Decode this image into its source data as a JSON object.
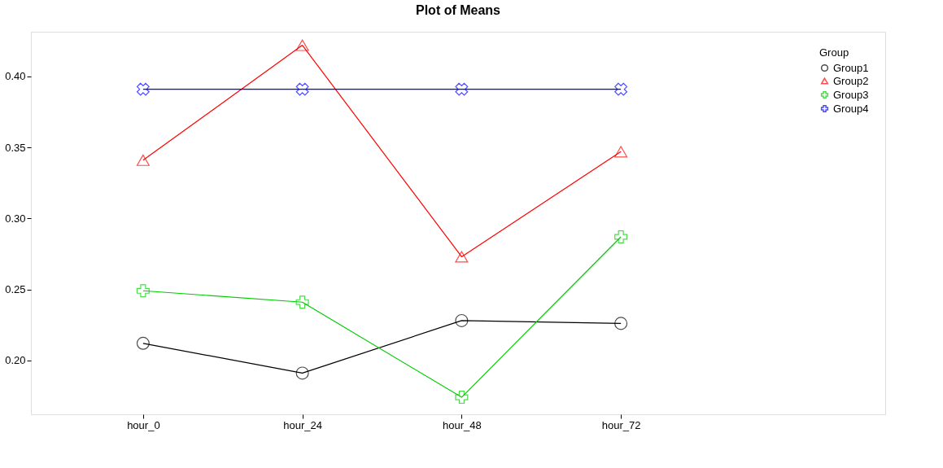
{
  "chart_data": {
    "type": "line",
    "title": "Plot of Means",
    "legend_title": "Group",
    "legend": "top right",
    "grid": false,
    "categories": [
      "hour_0",
      "hour_24",
      "hour_48",
      "hour_72"
    ],
    "ylim": [
      0.162,
      0.4315
    ],
    "yticks": [
      {
        "value": 0.2,
        "label": "0.20"
      },
      {
        "value": 0.25,
        "label": "0.25"
      },
      {
        "value": 0.3,
        "label": "0.30"
      },
      {
        "value": 0.35,
        "label": "0.35"
      },
      {
        "value": 0.4,
        "label": "0.40"
      }
    ],
    "series": [
      {
        "name": "Group1",
        "color": "#000000",
        "marker": "circle",
        "values": [
          0.212,
          0.191,
          0.228,
          0.226
        ]
      },
      {
        "name": "Group2",
        "color": "#ff0000",
        "marker": "triangle",
        "values": [
          0.341,
          0.422,
          0.273,
          0.347
        ]
      },
      {
        "name": "Group3",
        "color": "#00cc00",
        "marker": "cross",
        "values": [
          0.249,
          0.241,
          0.174,
          0.287
        ]
      },
      {
        "name": "Group4",
        "color": "#0000ff",
        "marker": "cross",
        "values": [
          0.391,
          0.391,
          0.391,
          0.391
        ]
      }
    ]
  }
}
